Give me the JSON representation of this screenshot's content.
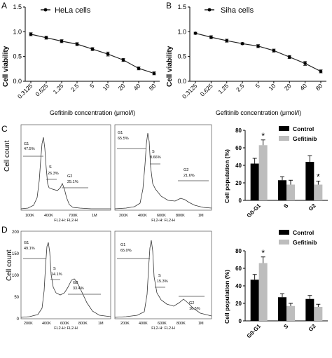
{
  "panels": {
    "A": {
      "letter": "A",
      "legend": "HeLa cells",
      "ylabel": "Cell viability",
      "xlabel": "Gefitinib concentration (μmol/l)"
    },
    "B": {
      "letter": "B",
      "legend": "Siha cells",
      "ylabel": "Cell viability",
      "xlabel": "Gefitinib concentration (μmol/l)"
    },
    "C": {
      "letter": "C",
      "ylabel_hist": "Cell count",
      "hist1": {
        "g1": "G1",
        "g1_pct": "47.5%",
        "s": "S",
        "s_pct": "26.3%",
        "g2": "G2",
        "g2_pct": "25.1%",
        "xaxis": "FL2-H: FL2-H",
        "ticks": [
          "100K",
          "400K",
          "700K",
          "1M"
        ]
      },
      "hist2": {
        "g1": "G1",
        "g1_pct": "65.5%",
        "s": "S",
        "s_pct": "8.66%",
        "g2": "G2",
        "g2_pct": "21.6%",
        "xaxis": "FL2-H: FL2-H",
        "ticks": [
          "200K",
          "400K",
          "600K",
          "800K",
          "1M"
        ]
      },
      "bar_ylabel": "Cell population (%)",
      "legend_control": "Control",
      "legend_gefitinib": "Gefitinib",
      "sig": "*"
    },
    "D": {
      "letter": "D",
      "ylabel_hist": "Cell count",
      "hist1": {
        "g1": "G1",
        "g1_pct": "49.1%",
        "s": "S",
        "s_pct": "14.1%",
        "g2": "G2",
        "g2_pct": "33.4%",
        "xaxis": "FL2-H: FL2-H",
        "ticks": [
          "200K",
          "400K",
          "600K",
          "800K",
          "1M"
        ]
      },
      "hist2": {
        "g1": "G1",
        "g1_pct": "65.0%",
        "s": "S",
        "s_pct": "15.3%",
        "g2": "G2",
        "g2_pct": "16.5%",
        "xaxis": "FL2-H: FL2-H",
        "ticks": [
          "200K",
          "400K",
          "600K",
          "800K",
          "1M"
        ]
      },
      "bar_ylabel": "Cell population (%)",
      "legend_control": "Control",
      "legend_gefitinib": "Gefitinib",
      "sig": "*"
    }
  },
  "hist_yticks": [
    "0",
    "50",
    "100",
    "150",
    "200"
  ],
  "colors": {
    "control": "#000000",
    "gefitinib": "#bdbdbd",
    "axis": "#000000",
    "line": "#222222"
  },
  "chart_data": [
    {
      "type": "line",
      "panel": "A",
      "title": "",
      "x": [
        "0.3125",
        "0.625",
        "1.25",
        "2.5",
        "5",
        "10",
        "20",
        "40",
        "80"
      ],
      "series": [
        {
          "name": "HeLa cells",
          "values": [
            0.95,
            0.88,
            0.81,
            0.75,
            0.65,
            0.55,
            0.43,
            0.26,
            0.16
          ],
          "errors": [
            0.03,
            0.03,
            0.03,
            0.03,
            0.03,
            0.04,
            0.03,
            0.03,
            0.03
          ]
        }
      ],
      "xlabel": "Gefitinib concentration (μmol/l)",
      "ylabel": "Cell viability",
      "ylim": [
        0.0,
        1.5
      ],
      "yticks": [
        "0.0",
        "0.5",
        "1.0",
        "1.5"
      ]
    },
    {
      "type": "line",
      "panel": "B",
      "title": "",
      "x": [
        "0.3125",
        "0.625",
        "1.25",
        "2.5",
        "5",
        "10",
        "20",
        "40",
        "80"
      ],
      "series": [
        {
          "name": "Siha cells",
          "values": [
            0.97,
            0.89,
            0.82,
            0.76,
            0.71,
            0.62,
            0.49,
            0.36,
            0.2
          ],
          "errors": [
            0.02,
            0.03,
            0.03,
            0.02,
            0.03,
            0.03,
            0.03,
            0.04,
            0.03
          ]
        }
      ],
      "xlabel": "Gefitinib concentration (μmol/l)",
      "ylabel": "Cell viability",
      "ylim": [
        0.0,
        1.5
      ],
      "yticks": [
        "0.0",
        "0.5",
        "1.0",
        "1.5"
      ]
    },
    {
      "type": "bar",
      "panel": "C",
      "categories": [
        "G0-G1",
        "S",
        "G2"
      ],
      "series": [
        {
          "name": "Control",
          "values": [
            42,
            23,
            44
          ],
          "errors": [
            6,
            4,
            7
          ]
        },
        {
          "name": "Gefitinib",
          "values": [
            63,
            18,
            18
          ],
          "errors": [
            6,
            5,
            4
          ]
        }
      ],
      "significant": [
        [
          0,
          1
        ],
        [
          2,
          1
        ]
      ],
      "ylabel": "Cell population (%)",
      "ylim": [
        0,
        80
      ],
      "yticks": [
        "0",
        "20",
        "40",
        "60",
        "80"
      ]
    },
    {
      "type": "bar",
      "panel": "D",
      "categories": [
        "G0-G1",
        "S",
        "G2"
      ],
      "series": [
        {
          "name": "Control",
          "values": [
            47,
            27,
            25
          ],
          "errors": [
            6,
            4,
            4
          ]
        },
        {
          "name": "Gefitinib",
          "values": [
            66,
            17,
            16
          ],
          "errors": [
            7,
            3,
            3
          ]
        }
      ],
      "significant": [
        [
          0,
          1
        ]
      ],
      "ylabel": "Cell population (%)",
      "ylim": [
        0,
        80
      ],
      "yticks": [
        "0",
        "20",
        "40",
        "60",
        "80"
      ]
    }
  ]
}
